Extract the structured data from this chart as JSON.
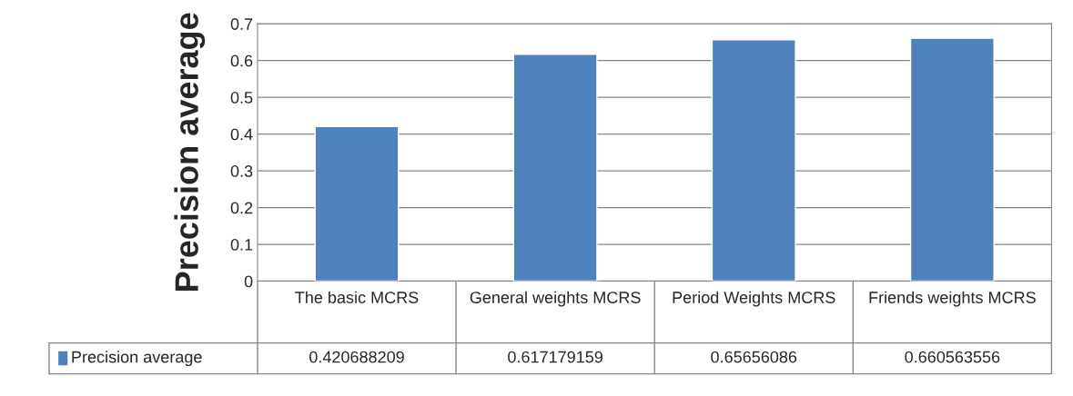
{
  "chart_data": {
    "type": "bar",
    "categories": [
      "The basic MCRS",
      "General weights MCRS",
      "Period Weights MCRS",
      "Friends weights MCRS"
    ],
    "series": [
      {
        "name": "Precision average",
        "color": "#4f81bd",
        "values": [
          0.420688209,
          0.617179159,
          0.65656086,
          0.660563556
        ]
      }
    ],
    "ylabel": "Precision average",
    "ylim": [
      0,
      0.7
    ],
    "yticks": [
      0,
      0.1,
      0.2,
      0.3,
      0.4,
      0.5,
      0.6,
      0.7
    ],
    "grid": "y",
    "data_labels": true,
    "legend": "bottom"
  }
}
